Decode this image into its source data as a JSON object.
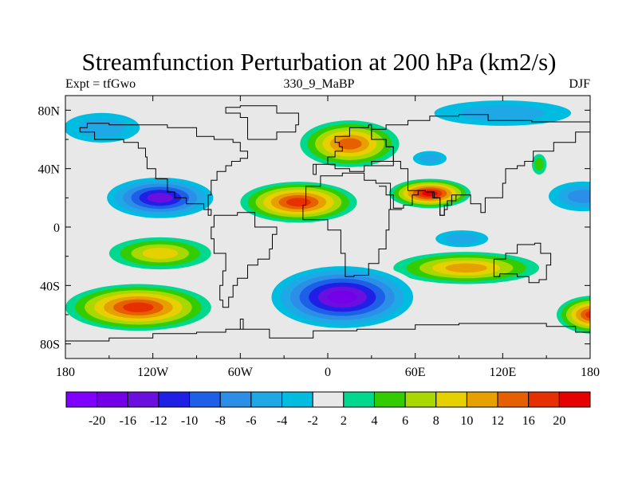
{
  "header": {
    "title": "Streamfunction Perturbation at 200 hPa (km2/s)",
    "left": "Expt = tfGwo",
    "center": "330_9_MaBP",
    "right": "DJF"
  },
  "chart_data": {
    "type": "heatmap",
    "title": "Streamfunction Perturbation at 200 hPa (km2/s)",
    "xlabel": "",
    "ylabel": "",
    "xlim": [
      -180,
      180
    ],
    "ylim": [
      -90,
      90
    ],
    "x_ticks": [
      {
        "value": -180,
        "label": "180"
      },
      {
        "value": -120,
        "label": "120W"
      },
      {
        "value": -60,
        "label": "60W"
      },
      {
        "value": 0,
        "label": "0"
      },
      {
        "value": 60,
        "label": "60E"
      },
      {
        "value": 120,
        "label": "120E"
      },
      {
        "value": 180,
        "label": "180"
      }
    ],
    "y_ticks": [
      {
        "value": 80,
        "label": "80N"
      },
      {
        "value": 40,
        "label": "40N"
      },
      {
        "value": 0,
        "label": "0"
      },
      {
        "value": -40,
        "label": "40S"
      },
      {
        "value": -80,
        "label": "80S"
      }
    ],
    "colorbar": {
      "colors": [
        "#7f00ff",
        "#7400e8",
        "#6a0fe0",
        "#1f1fe6",
        "#1e5fe8",
        "#2b8fe8",
        "#1fa8e6",
        "#00bce0",
        "#e8e8e8",
        "#00d890",
        "#33cc00",
        "#a8d800",
        "#e6d000",
        "#e6a000",
        "#e66000",
        "#e63000",
        "#e60000"
      ],
      "labels": [
        "-20",
        "-16",
        "-12",
        "-10",
        "-8",
        "-6",
        "-4",
        "-2",
        "2",
        "4",
        "6",
        "8",
        "10",
        "12",
        "16",
        "20"
      ]
    },
    "features": [
      {
        "name": "north-pacific-low",
        "lon": -155,
        "lat": 68,
        "value": -6,
        "rx": 36,
        "ry": 14
      },
      {
        "name": "north-atlantic-high",
        "lon": 15,
        "lat": 57,
        "value": 12,
        "rx": 34,
        "ry": 16
      },
      {
        "name": "central-asia-low",
        "lon": 70,
        "lat": 47,
        "value": -6,
        "rx": 16,
        "ry": 7
      },
      {
        "name": "arctic-low",
        "lon": 120,
        "lat": 78,
        "value": -6,
        "rx": 65,
        "ry": 12
      },
      {
        "name": "east-asia-high",
        "lon": 145,
        "lat": 43,
        "value": 4,
        "rx": 5,
        "ry": 7
      },
      {
        "name": "north-pacific-subtropical-low",
        "lon": -115,
        "lat": 20,
        "value": -16,
        "rx": 42,
        "ry": 16
      },
      {
        "name": "west-pacific-low",
        "lon": 175,
        "lat": 21,
        "value": -8,
        "rx": 30,
        "ry": 13
      },
      {
        "name": "east-pacific-high",
        "lon": -115,
        "lat": -18,
        "value": 8,
        "rx": 35,
        "ry": 11
      },
      {
        "name": "atlantic-africa-high",
        "lon": -20,
        "lat": 17,
        "value": 16,
        "rx": 40,
        "ry": 14
      },
      {
        "name": "arabia-high",
        "lon": 70,
        "lat": 23,
        "value": 20,
        "rx": 28,
        "ry": 10
      },
      {
        "name": "indian-ocean-low",
        "lon": 92,
        "lat": -8,
        "value": -6,
        "rx": 25,
        "ry": 8
      },
      {
        "name": "south-indian-high",
        "lon": 95,
        "lat": -28,
        "value": 10,
        "rx": 50,
        "ry": 11
      },
      {
        "name": "south-atlantic-low",
        "lon": 10,
        "lat": -48,
        "value": -20,
        "rx": 55,
        "ry": 24
      },
      {
        "name": "south-pacific-high",
        "lon": -130,
        "lat": -55,
        "value": 16,
        "rx": 50,
        "ry": 16
      },
      {
        "name": "dateline-high",
        "lon": 182,
        "lat": -60,
        "value": 16,
        "rx": 25,
        "ry": 13
      }
    ]
  }
}
